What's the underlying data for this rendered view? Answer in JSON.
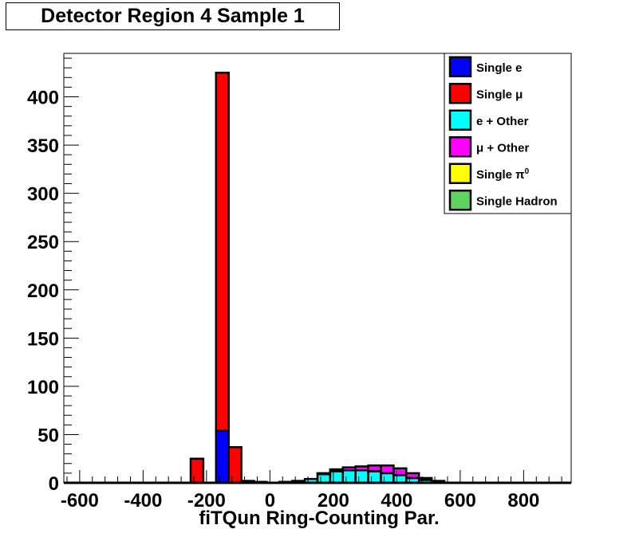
{
  "chart_data": {
    "type": "bar",
    "title": "Detector Region 4 Sample 1",
    "xlabel": "fiTQun Ring-Counting Par.",
    "ylabel": "",
    "xlim": [
      -650,
      950
    ],
    "ylim": [
      0,
      445
    ],
    "x_ticks": [
      -600,
      -400,
      -200,
      0,
      200,
      400,
      600,
      800
    ],
    "y_ticks": [
      0,
      50,
      100,
      150,
      200,
      250,
      300,
      350,
      400
    ],
    "x_tick_labels": [
      "-600",
      "-400",
      "-200",
      "0",
      "200",
      "400",
      "600",
      "800"
    ],
    "y_tick_labels": [
      "0",
      "50",
      "100",
      "150",
      "200",
      "250",
      "300",
      "350",
      "400"
    ],
    "stacked": true,
    "legend_position": "top-right",
    "bin_width": 40,
    "bins": [
      -250,
      -210,
      -170,
      -130,
      -90,
      -50,
      -10,
      30,
      70,
      110,
      150,
      190,
      230,
      270,
      310,
      350,
      390,
      430,
      470,
      510,
      550,
      590
    ],
    "series": [
      {
        "name": "Single e",
        "legend_label": "Single e",
        "color": "#0000ff",
        "values": [
          0,
          0,
          54,
          0,
          0,
          0,
          0,
          0,
          0,
          0,
          0,
          0,
          0,
          0,
          0,
          0,
          0,
          0,
          0,
          0,
          0,
          0
        ]
      },
      {
        "name": "Single μ",
        "legend_label": "Single  μ",
        "color": "#ff0000",
        "values": [
          25,
          0,
          371,
          37,
          2,
          1,
          0,
          0,
          0,
          0,
          0,
          0,
          0,
          0,
          0,
          0,
          0,
          0,
          0,
          0,
          0,
          0
        ]
      },
      {
        "name": "e + Other",
        "legend_label": "e + Other",
        "color": "#00ffff",
        "values": [
          0,
          0,
          0,
          0,
          0,
          0,
          0,
          1,
          2,
          4,
          9,
          12,
          13,
          13,
          12,
          10,
          8,
          5,
          3,
          1,
          0,
          0
        ]
      },
      {
        "name": "μ + Other",
        "legend_label": "μ + Other",
        "color": "#ff00ff",
        "values": [
          0,
          0,
          0,
          0,
          0,
          0,
          0,
          0,
          0,
          0,
          1,
          2,
          3,
          4,
          6,
          8,
          7,
          5,
          2,
          1,
          0,
          0
        ]
      },
      {
        "name": "Single π0",
        "legend_label": "Single  π0",
        "color": "#ffff00",
        "values": [
          0,
          0,
          0,
          0,
          0,
          0,
          0,
          0,
          0,
          0,
          0,
          0,
          0,
          0,
          0,
          0,
          0,
          0,
          0,
          0,
          0,
          0
        ]
      },
      {
        "name": "Single Hadron",
        "legend_label": "Single Hadron",
        "color": "#5fd35f",
        "values": [
          0,
          0,
          0,
          0,
          0,
          0,
          0,
          0,
          0,
          0,
          0,
          0,
          0,
          0,
          0,
          0,
          0,
          0,
          0,
          0,
          0,
          0
        ]
      }
    ]
  }
}
